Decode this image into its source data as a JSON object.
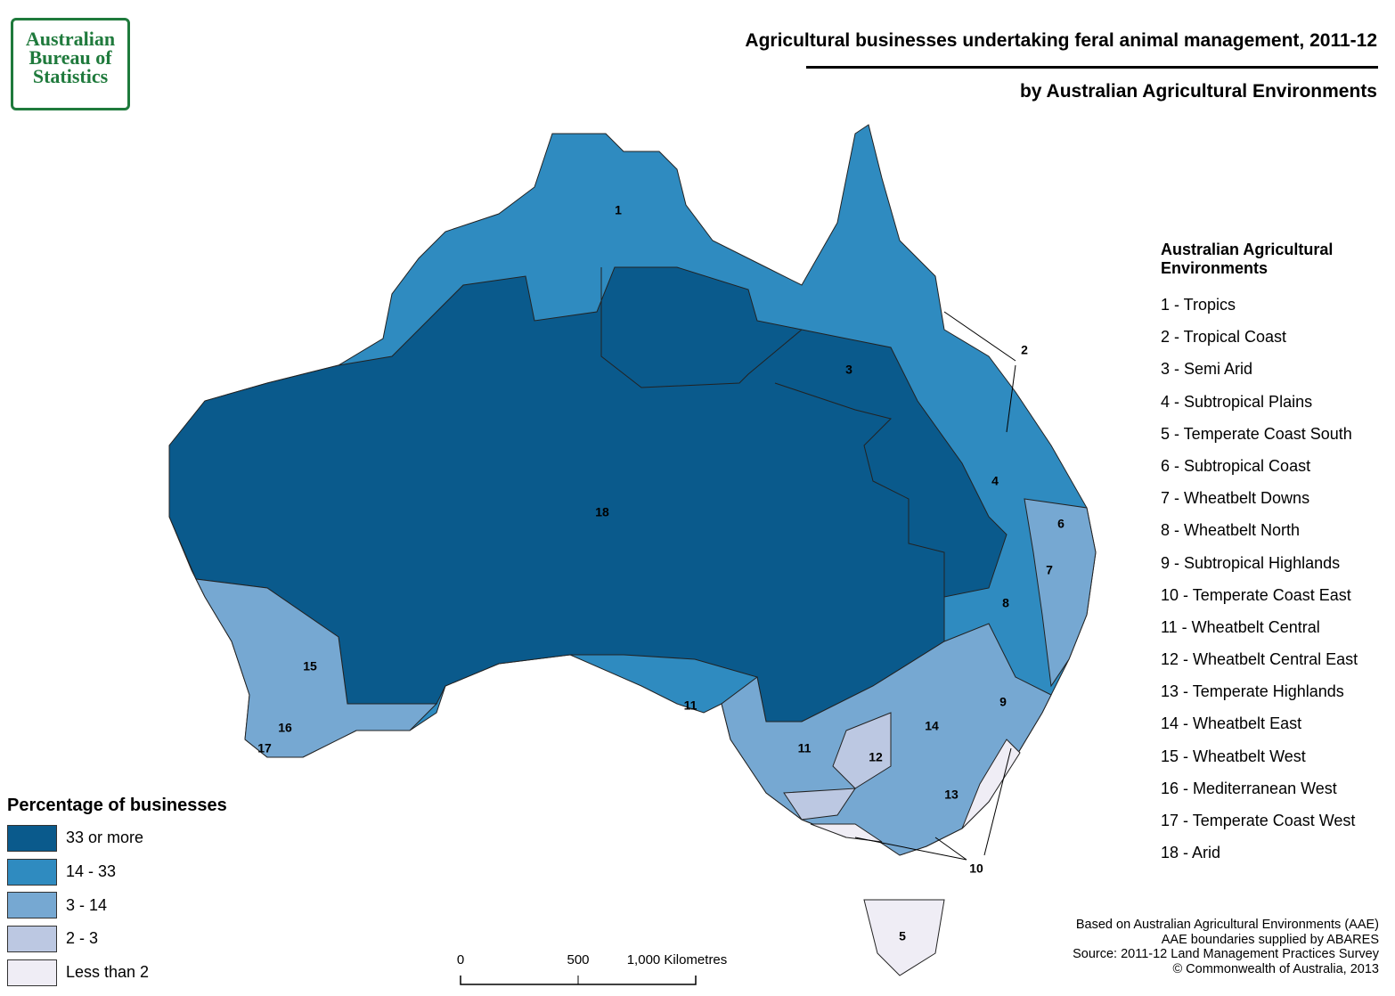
{
  "header": {
    "title": "Agricultural businesses undertaking feral animal management, 2011-12",
    "subtitle": "by Australian Agricultural Environments"
  },
  "logo": {
    "lines": [
      "Australian",
      "Bureau of",
      "Statistics"
    ]
  },
  "environments": {
    "title": "Australian Agricultural Environments",
    "items": [
      "1 - Tropics",
      "2 - Tropical Coast",
      "3 - Semi Arid",
      "4 - Subtropical Plains",
      "5 - Temperate Coast South",
      "6 - Subtropical Coast",
      "7 - Wheatbelt Downs",
      "8 - Wheatbelt North",
      "9 - Subtropical Highlands",
      "10 - Temperate Coast East",
      "11 - Wheatbelt Central",
      "12 - Wheatbelt Central East",
      "13 - Temperate Highlands",
      "14 - Wheatbelt East",
      "15 - Wheatbelt West",
      "16 - Mediterranean West",
      "17 - Temperate Coast West",
      "18 - Arid"
    ]
  },
  "legend": {
    "title": "Percentage of businesses",
    "classes": [
      {
        "label": "33 or more",
        "color": "#0a5a8c"
      },
      {
        "label": "14 - 33",
        "color": "#2f8bc0"
      },
      {
        "label": "3 - 14",
        "color": "#76a8d2"
      },
      {
        "label": "2 - 3",
        "color": "#bcc8e2"
      },
      {
        "label": "Less than 2",
        "color": "#efedf5"
      }
    ]
  },
  "map_labels": [
    "1",
    "2",
    "3",
    "4",
    "6",
    "7",
    "8",
    "9",
    "11",
    "11",
    "12",
    "13",
    "14",
    "10",
    "5",
    "15",
    "16",
    "17",
    "18"
  ],
  "scale": {
    "labels": [
      "0",
      "500",
      "1,000 Kilometres"
    ]
  },
  "notes": [
    "Based on Australian Agricultural Environments (AAE)",
    "AAE boundaries supplied by ABARES",
    "Source: 2011-12 Land Management Practices Survey",
    "© Commonwealth of Australia, 2013"
  ]
}
